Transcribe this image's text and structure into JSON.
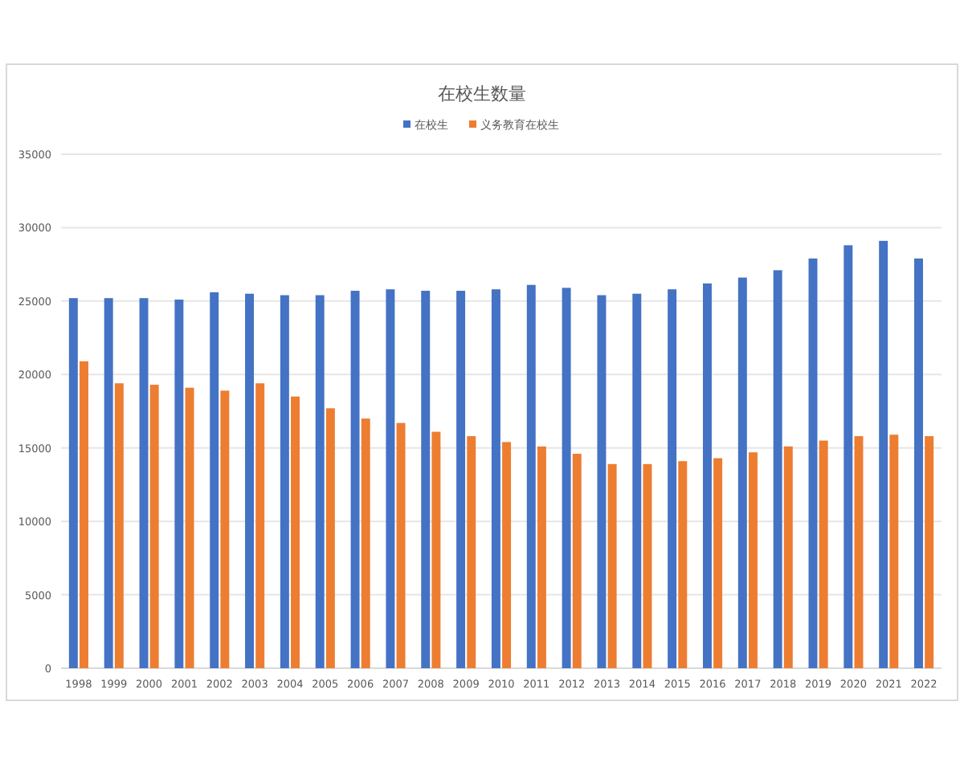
{
  "chart_data": {
    "type": "bar",
    "title": "在校生数量",
    "categories": [
      "1998",
      "1999",
      "2000",
      "2001",
      "2002",
      "2003",
      "2004",
      "2005",
      "2006",
      "2007",
      "2008",
      "2009",
      "2010",
      "2011",
      "2012",
      "2013",
      "2014",
      "2015",
      "2016",
      "2017",
      "2018",
      "2019",
      "2020",
      "2021",
      "2022"
    ],
    "series": [
      {
        "name": "在校生",
        "color": "#4472c4",
        "values": [
          25200,
          25200,
          25200,
          25100,
          25600,
          25500,
          25400,
          25400,
          25700,
          25800,
          25700,
          25700,
          25800,
          26100,
          25900,
          25400,
          25500,
          25800,
          26200,
          26600,
          27100,
          27900,
          28800,
          29100,
          27900
        ]
      },
      {
        "name": "义务教育在校生",
        "color": "#ed7d31",
        "values": [
          20900,
          19400,
          19300,
          19100,
          18900,
          19400,
          18500,
          17700,
          17000,
          16700,
          16100,
          15800,
          15400,
          15100,
          14600,
          13900,
          13900,
          14100,
          14300,
          14700,
          15100,
          15500,
          15800,
          15900,
          15800
        ]
      }
    ],
    "ylim": [
      0,
      35000
    ],
    "yticks": [
      0,
      5000,
      10000,
      15000,
      20000,
      25000,
      30000,
      35000
    ],
    "grid": "y",
    "legend": "top"
  }
}
